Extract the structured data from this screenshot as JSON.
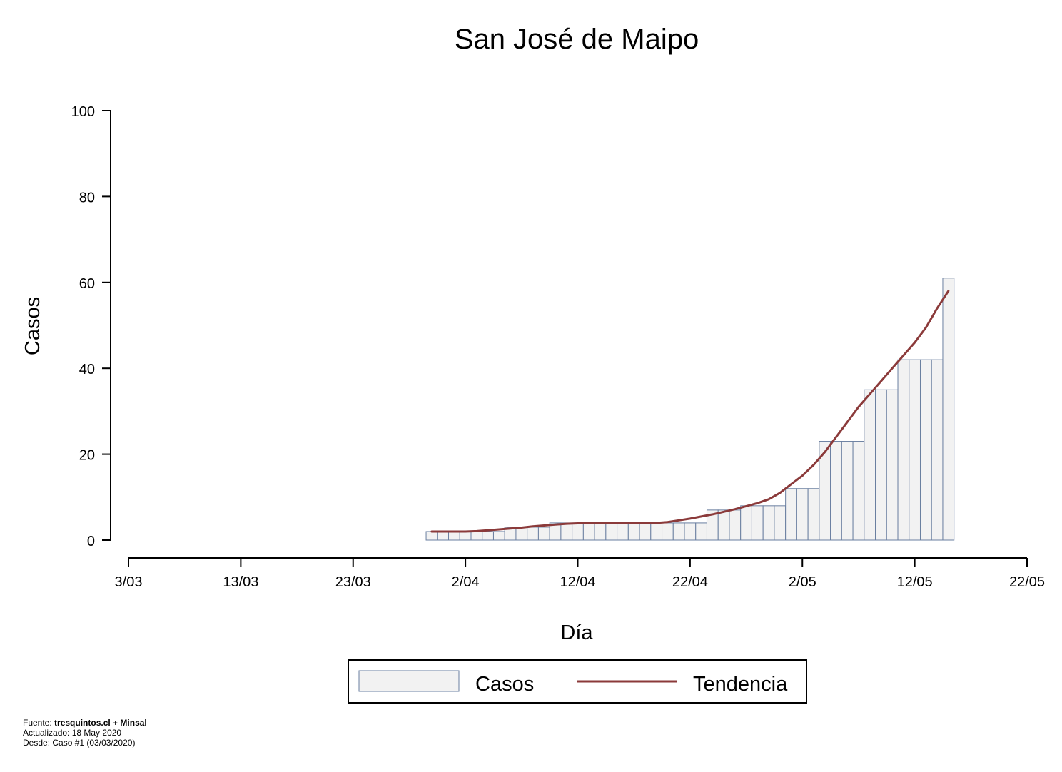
{
  "chart_data": {
    "type": "bar",
    "title": "San José de Maipo",
    "xlabel": "Día",
    "ylabel": "Casos",
    "ylim": [
      0,
      100
    ],
    "yticks": [
      0,
      20,
      40,
      60,
      80,
      100
    ],
    "xlim": [
      "2020-03-03",
      "2020-05-22"
    ],
    "xticks": [
      {
        "date": "2020-03-03",
        "label": "3/03"
      },
      {
        "date": "2020-03-13",
        "label": "13/03"
      },
      {
        "date": "2020-03-23",
        "label": "23/03"
      },
      {
        "date": "2020-04-02",
        "label": "2/04"
      },
      {
        "date": "2020-04-12",
        "label": "12/04"
      },
      {
        "date": "2020-04-22",
        "label": "22/04"
      },
      {
        "date": "2020-05-02",
        "label": "2/05"
      },
      {
        "date": "2020-05-12",
        "label": "12/05"
      },
      {
        "date": "2020-05-22",
        "label": "22/05"
      }
    ],
    "dates": [
      "2020-03-30",
      "2020-03-31",
      "2020-04-01",
      "2020-04-02",
      "2020-04-03",
      "2020-04-04",
      "2020-04-05",
      "2020-04-06",
      "2020-04-07",
      "2020-04-08",
      "2020-04-09",
      "2020-04-10",
      "2020-04-11",
      "2020-04-12",
      "2020-04-13",
      "2020-04-14",
      "2020-04-15",
      "2020-04-16",
      "2020-04-17",
      "2020-04-18",
      "2020-04-19",
      "2020-04-20",
      "2020-04-21",
      "2020-04-22",
      "2020-04-23",
      "2020-04-24",
      "2020-04-25",
      "2020-04-26",
      "2020-04-27",
      "2020-04-28",
      "2020-04-29",
      "2020-04-30",
      "2020-05-01",
      "2020-05-02",
      "2020-05-03",
      "2020-05-04",
      "2020-05-05",
      "2020-05-06",
      "2020-05-07",
      "2020-05-08",
      "2020-05-09",
      "2020-05-10",
      "2020-05-11",
      "2020-05-12",
      "2020-05-13",
      "2020-05-14",
      "2020-05-15"
    ],
    "series": [
      {
        "name": "Casos",
        "type": "bar",
        "values": [
          2,
          2,
          2,
          2,
          2,
          2,
          2,
          3,
          3,
          3,
          3,
          4,
          4,
          4,
          4,
          4,
          4,
          4,
          4,
          4,
          4,
          4,
          4,
          4,
          4,
          7,
          7,
          7,
          8,
          8,
          8,
          8,
          12,
          12,
          12,
          23,
          23,
          23,
          23,
          35,
          35,
          35,
          42,
          42,
          42,
          42,
          61
        ]
      },
      {
        "name": "Tendencia",
        "type": "line",
        "values": [
          2,
          2,
          2,
          2,
          2.1,
          2.3,
          2.5,
          2.7,
          2.9,
          3.2,
          3.4,
          3.6,
          3.8,
          3.9,
          4,
          4,
          4,
          4,
          4,
          4,
          4,
          4.2,
          4.6,
          5,
          5.5,
          6,
          6.6,
          7.2,
          7.9,
          8.6,
          9.5,
          11,
          13,
          15,
          17.5,
          20.5,
          24,
          27.5,
          31,
          34,
          37,
          40,
          43,
          46,
          49.5,
          54,
          58
        ]
      }
    ],
    "colors": {
      "bar_fill": "#f2f2f2",
      "bar_stroke": "#6a7fa0",
      "trend": "#8b3a3a"
    },
    "legend": {
      "position": "bottom-center",
      "entries": [
        "Casos",
        "Tendencia"
      ]
    },
    "grid": false
  },
  "footer": {
    "fuente_prefix": "Fuente: ",
    "fuente_site": "tresquintos.cl",
    "fuente_plus": " + ",
    "fuente_org": "Minsal",
    "actualizado": "Actualizado: 18 May 2020",
    "desde": "Desde: Caso #1  (03/03/2020)"
  }
}
